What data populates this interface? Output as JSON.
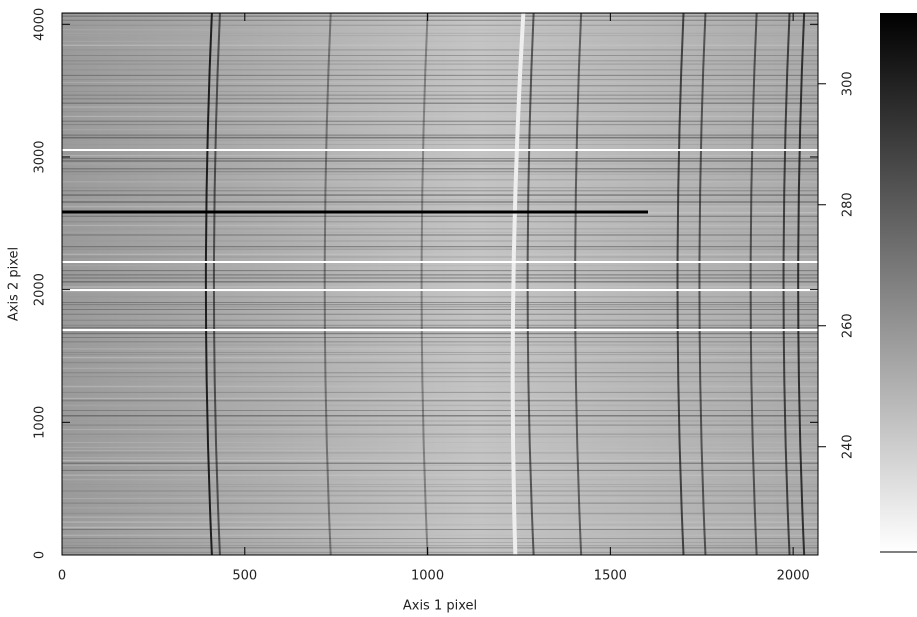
{
  "chart_data": {
    "type": "image",
    "xlabel": "Axis 1 pixel",
    "ylabel": "Axis 2 pixel",
    "xlim": [
      0,
      2068
    ],
    "ylim": [
      0,
      4085
    ],
    "xticks": [
      0,
      500,
      1000,
      1500,
      2000
    ],
    "yticks": [
      0,
      1000,
      2000,
      3000,
      4000
    ],
    "colormap": [
      "#ffffff",
      "#000000"
    ],
    "colorbar": {
      "lim": [
        222.6,
        311.7
      ],
      "ticks": [
        240,
        260,
        280,
        300
      ]
    }
  }
}
